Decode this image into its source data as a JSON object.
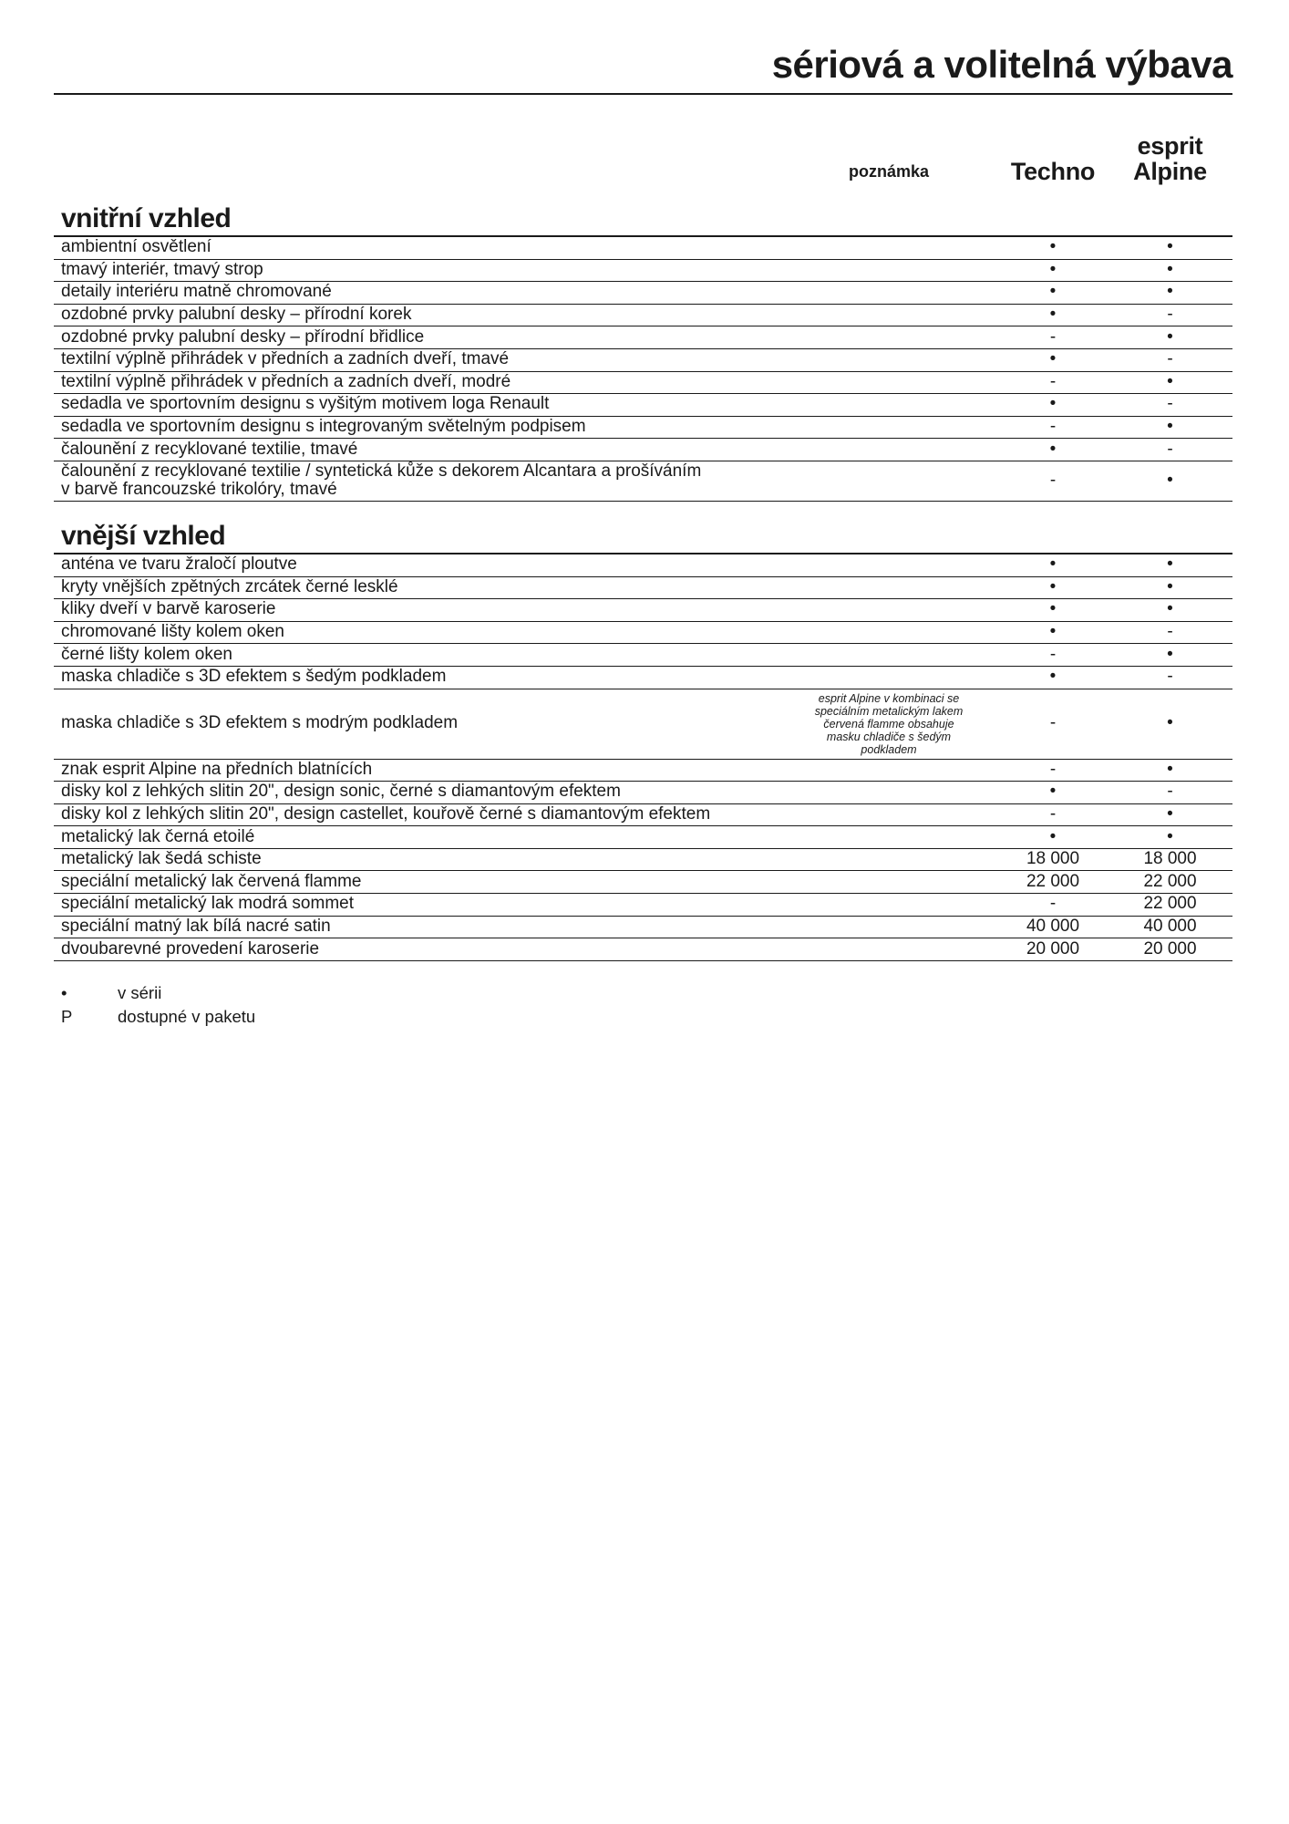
{
  "page": {
    "title": "sériová a volitelná výbava"
  },
  "columns": {
    "note": "poznámka",
    "trim1": "Techno",
    "trim2_line1": "esprit",
    "trim2_line2": "Alpine"
  },
  "sections": [
    {
      "heading": "vnitřní vzhled",
      "rows": [
        {
          "label": "ambientní osvětlení",
          "note": "",
          "techno": "•",
          "alpine": "•"
        },
        {
          "label": "tmavý interiér, tmavý strop",
          "note": "",
          "techno": "•",
          "alpine": "•"
        },
        {
          "label": "detaily interiéru matně chromované",
          "note": "",
          "techno": "•",
          "alpine": "•"
        },
        {
          "label": "ozdobné prvky palubní desky – přírodní korek",
          "note": "",
          "techno": "•",
          "alpine": "-"
        },
        {
          "label": "ozdobné prvky palubní desky – přírodní břidlice",
          "note": "",
          "techno": "-",
          "alpine": "•"
        },
        {
          "label": "textilní výplně přihrádek v předních a zadních dveří, tmavé",
          "note": "",
          "techno": "•",
          "alpine": "-"
        },
        {
          "label": "textilní výplně přihrádek v předních a zadních dveří, modré",
          "note": "",
          "techno": "-",
          "alpine": "•"
        },
        {
          "label": "sedadla ve sportovním designu s vyšitým motivem loga Renault",
          "note": "",
          "techno": "•",
          "alpine": "-"
        },
        {
          "label": "sedadla ve sportovním designu s integrovaným světelným podpisem",
          "note": "",
          "techno": "-",
          "alpine": "•"
        },
        {
          "label": "čalounění z recyklované textilie, tmavé",
          "note": "",
          "techno": "•",
          "alpine": "-"
        },
        {
          "label": "čalounění z recyklované textilie / syntetická kůže s dekorem Alcantara a prošíváním\nv barvě francouzské trikolóry, tmavé",
          "note": "",
          "techno": "-",
          "alpine": "•"
        }
      ]
    },
    {
      "heading": "vnější vzhled",
      "rows": [
        {
          "label": "anténa ve tvaru žraločí ploutve",
          "note": "",
          "techno": "•",
          "alpine": "•"
        },
        {
          "label": "kryty vnějších zpětných zrcátek černé lesklé",
          "note": "",
          "techno": "•",
          "alpine": "•"
        },
        {
          "label": "kliky dveří v barvě karoserie",
          "note": "",
          "techno": "•",
          "alpine": "•"
        },
        {
          "label": "chromované lišty kolem oken",
          "note": "",
          "techno": "•",
          "alpine": "-"
        },
        {
          "label": "černé lišty kolem oken",
          "note": "",
          "techno": "-",
          "alpine": "•"
        },
        {
          "label": "maska chladiče s 3D efektem s šedým podkladem",
          "note": "",
          "techno": "•",
          "alpine": "-"
        },
        {
          "label": "maska chladiče s 3D efektem s modrým podkladem",
          "note": "esprit Alpine v kombinaci se speciálním metalickým lakem červená flamme obsahuje masku chladiče s šedým podkladem",
          "techno": "-",
          "alpine": "•"
        },
        {
          "label": "znak esprit Alpine na předních blatnících",
          "note": "",
          "techno": "-",
          "alpine": "•"
        },
        {
          "label": "disky kol z lehkých slitin 20\", design sonic, černé s diamantovým efektem",
          "note": "",
          "techno": "•",
          "alpine": "-"
        },
        {
          "label": "disky kol z lehkých slitin 20\", design castellet, kouřově černé s diamantovým efektem",
          "note": "",
          "techno": "-",
          "alpine": "•"
        },
        {
          "label": "metalický lak černá etoilé",
          "note": "",
          "techno": "•",
          "alpine": "•"
        },
        {
          "label": "metalický lak šedá schiste",
          "note": "",
          "techno": "18 000",
          "alpine": "18 000"
        },
        {
          "label": "speciální metalický lak červená flamme",
          "note": "",
          "techno": "22 000",
          "alpine": "22 000"
        },
        {
          "label": "speciální metalický lak modrá sommet",
          "note": "",
          "techno": "-",
          "alpine": "22 000"
        },
        {
          "label": "speciální matný lak bílá nacré satin",
          "note": "",
          "techno": "40 000",
          "alpine": "40 000"
        },
        {
          "label": "dvoubarevné provedení karoserie",
          "note": "",
          "techno": "20 000",
          "alpine": "20 000"
        }
      ]
    }
  ],
  "legend": [
    {
      "symbol": "•",
      "label": "v sérii"
    },
    {
      "symbol": "P",
      "label": "dostupné v paketu"
    }
  ],
  "colors": {
    "text": "#1a1a1a",
    "rule": "#1a1a1a",
    "background": "#ffffff"
  }
}
